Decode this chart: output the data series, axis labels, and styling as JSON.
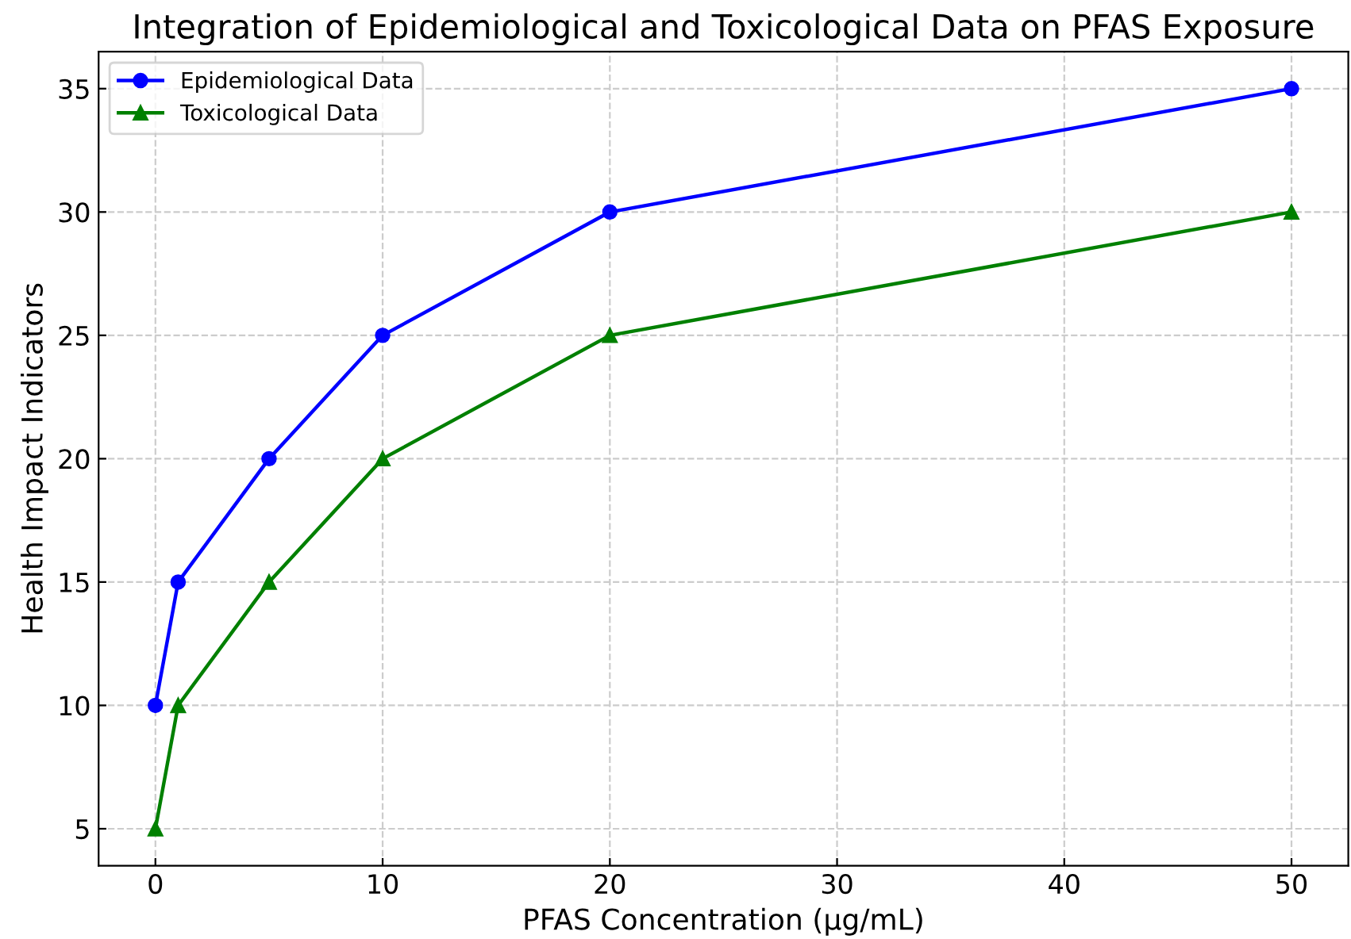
{
  "chart_data": {
    "type": "line",
    "title": "Integration of Epidemiological and Toxicological Data on PFAS Exposure",
    "xlabel": "PFAS Concentration (µg/mL)",
    "ylabel": "Health Impact Indicators",
    "x": [
      0,
      1,
      5,
      10,
      20,
      50
    ],
    "series": [
      {
        "name": "Epidemiological Data",
        "color": "#0000ff",
        "marker": "circle",
        "values": [
          10,
          15,
          20,
          25,
          30,
          35
        ]
      },
      {
        "name": "Toxicological Data",
        "color": "#008000",
        "marker": "triangle",
        "values": [
          5,
          10,
          15,
          20,
          25,
          30
        ]
      }
    ],
    "xlim": [
      -2.5,
      52.5
    ],
    "ylim": [
      3.5,
      36.5
    ],
    "xticks": [
      0,
      10,
      20,
      30,
      40,
      50
    ],
    "yticks": [
      5,
      10,
      15,
      20,
      25,
      30,
      35
    ],
    "grid": true,
    "legend": "top left",
    "line_style": "solid"
  }
}
